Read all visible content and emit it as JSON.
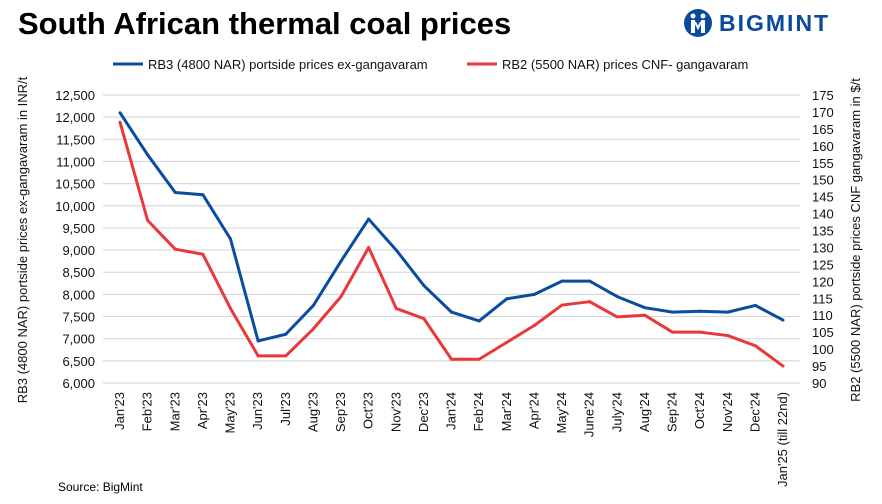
{
  "chart_data": {
    "type": "line",
    "title": "South African thermal coal prices",
    "source": "Source: BigMint",
    "brand": "BIGMINT",
    "categories": [
      "Jan'23",
      "Feb'23",
      "Mar'23",
      "Apr'23",
      "May'23",
      "Jun'23",
      "Jul'23",
      "Aug'23",
      "Sep'23",
      "Oct'23",
      "Nov'23",
      "Dec'23",
      "Jan'24",
      "Feb'24",
      "Mar'24",
      "Apr'24",
      "May'24",
      "June'24",
      "July'24",
      "Aug'24",
      "Sep'24",
      "Oct'24",
      "Nov'24",
      "Dec'24",
      "Jan'25 (till 22nd)"
    ],
    "ylabel_left": "RB3 (4800 NAR) portside prices ex-gangavaram  in INR/t",
    "ylabel_right": "RB2 (5500 NAR) portside prices CNF gangavaram  in $/t",
    "ylim_left": [
      6000,
      12500
    ],
    "yticks_left": [
      "6,000",
      "6,500",
      "7,000",
      "7,500",
      "8,000",
      "8,500",
      "9,000",
      "9,500",
      "10,000",
      "10,500",
      "11,000",
      "11,500",
      "12,000",
      "12,500"
    ],
    "ylim_right": [
      90,
      175
    ],
    "yticks_right": [
      "90",
      "95",
      "100",
      "105",
      "110",
      "115",
      "120",
      "125",
      "130",
      "135",
      "140",
      "145",
      "150",
      "155",
      "160",
      "165",
      "170",
      "175"
    ],
    "grid": true,
    "legend_placement": "top",
    "series": [
      {
        "name": "RB3 (4800 NAR) portside prices ex-gangavaram",
        "axis": "left",
        "color": "#0a4d9e",
        "values": [
          12100,
          11150,
          10300,
          10250,
          9250,
          6950,
          7100,
          7750,
          8750,
          9700,
          9000,
          8200,
          7600,
          7400,
          7900,
          8000,
          8300,
          8300,
          7950,
          7700,
          7600,
          7620,
          7600,
          7750,
          7420
        ]
      },
      {
        "name": "RB2 (5500 NAR) prices CNF- gangavaram",
        "axis": "right",
        "color": "#e8383a",
        "values": [
          167,
          138,
          129.5,
          128,
          112,
          98,
          98,
          106,
          115.5,
          130,
          112,
          109,
          97,
          97,
          102,
          107,
          113,
          114,
          109.5,
          110,
          105,
          105,
          104,
          101,
          95
        ]
      }
    ]
  }
}
